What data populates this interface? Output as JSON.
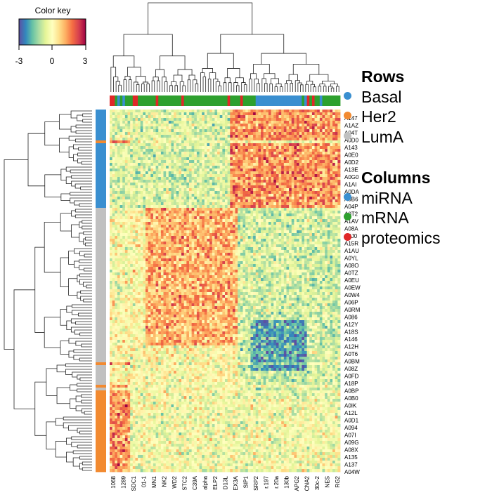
{
  "chart_data": {
    "type": "heatmap",
    "color_key": {
      "title": "Color key",
      "ticks": [
        "-3",
        "0",
        "3"
      ],
      "range": [
        -3,
        3
      ],
      "colors": [
        "#5e4fa2",
        "#3288bd",
        "#66c2a5",
        "#abdda4",
        "#e6f598",
        "#ffffbf",
        "#fee08b",
        "#fdae61",
        "#f46d43",
        "#d53e4f",
        "#9e0142"
      ]
    },
    "legend": {
      "rows_title": "Rows",
      "rows": [
        {
          "label": "Basal",
          "color": "#3a8fd0"
        },
        {
          "label": "Her2",
          "color": "#f28a30"
        },
        {
          "label": "LumA",
          "color": "#c0c0c0"
        }
      ],
      "columns_title": "Columns",
      "columns": [
        {
          "label": "miRNA",
          "color": "#3a8fd0"
        },
        {
          "label": "mRNA",
          "color": "#2ea02e"
        },
        {
          "label": "proteomics",
          "color": "#e02828"
        }
      ]
    },
    "row_labels": [
      "A147",
      "A1AZ",
      "A04T",
      "A0D0",
      "A143",
      "A0E0",
      "A0D2",
      "A13E",
      "A0G0",
      "A1AI",
      "A0DA",
      "A0B6",
      "A04P",
      "A0T2",
      "A1AV",
      "A08A",
      "A0J0",
      "A15R",
      "A1AU",
      "A0YL",
      "A08O",
      "A0TZ",
      "A0EU",
      "A0EW",
      "A0W4",
      "A06P",
      "A0RM",
      "A086",
      "A12Y",
      "A18S",
      "A146",
      "A12H",
      "A0T6",
      "A0BM",
      "A08Z",
      "A0FD",
      "A18P",
      "A0BP",
      "A0B0",
      "A0IK",
      "A12L",
      "A0D1",
      "A094",
      "A07I",
      "A09G",
      "A08X",
      "A135",
      "A137",
      "A04W"
    ],
    "column_labels": [
      "1068",
      "1289",
      "SDC1",
      "01-1",
      "MN1",
      "NK2",
      "WD2",
      "STC2",
      "C39A",
      "alpha",
      "ELP2",
      "D13L",
      "EX3A",
      "SIP1",
      "SRP2",
      "r.197",
      "r.20a",
      "130b",
      "APG2",
      "CNA2",
      "30c-2",
      "NES",
      "RG2"
    ],
    "row_group_bands": [
      {
        "group": "Basal",
        "rows": 11
      },
      {
        "group": "Her2",
        "rows": 1
      },
      {
        "group": "Basal",
        "rows": 23
      },
      {
        "group": "LumA",
        "rows": 55
      },
      {
        "group": "Her2",
        "rows": 1
      },
      {
        "group": "LumA",
        "rows": 7
      },
      {
        "group": "Her2",
        "rows": 1
      },
      {
        "group": "LumA",
        "rows": 1
      },
      {
        "group": "Her2",
        "rows": 29
      }
    ],
    "column_groups": [
      "proteomics",
      "proteomics",
      "mRNA",
      "miRNA",
      "mRNA",
      "miRNA",
      "mRNA",
      "mRNA",
      "mRNA",
      "proteomics",
      "proteomics",
      "mRNA",
      "mRNA",
      "mRNA",
      "mRNA",
      "mRNA",
      "mRNA",
      "mRNA",
      "proteomics",
      "mRNA",
      "mRNA",
      "mRNA",
      "mRNA",
      "mRNA",
      "mRNA",
      "mRNA",
      "mRNA",
      "mRNA",
      "proteomics",
      "mRNA",
      "mRNA",
      "mRNA",
      "mRNA",
      "mRNA",
      "mRNA",
      "mRNA",
      "mRNA",
      "mRNA",
      "mRNA",
      "mRNA",
      "mRNA",
      "mRNA",
      "mRNA",
      "mRNA",
      "mRNA",
      "mRNA",
      "proteomics",
      "mRNA",
      "mRNA",
      "mRNA",
      "mRNA",
      "proteomics",
      "mRNA",
      "mRNA",
      "mRNA",
      "mRNA",
      "mRNA",
      "miRNA",
      "miRNA",
      "miRNA",
      "miRNA",
      "miRNA",
      "miRNA",
      "miRNA",
      "miRNA",
      "miRNA",
      "miRNA",
      "miRNA",
      "miRNA",
      "miRNA",
      "miRNA",
      "miRNA",
      "miRNA",
      "miRNA",
      "miRNA",
      "mRNA",
      "miRNA",
      "proteomics",
      "mRNA",
      "proteomics",
      "mRNA",
      "mRNA",
      "miRNA",
      "mRNA",
      "mRNA",
      "mRNA",
      "mRNA",
      "mRNA",
      "mRNA",
      "mRNA"
    ]
  }
}
